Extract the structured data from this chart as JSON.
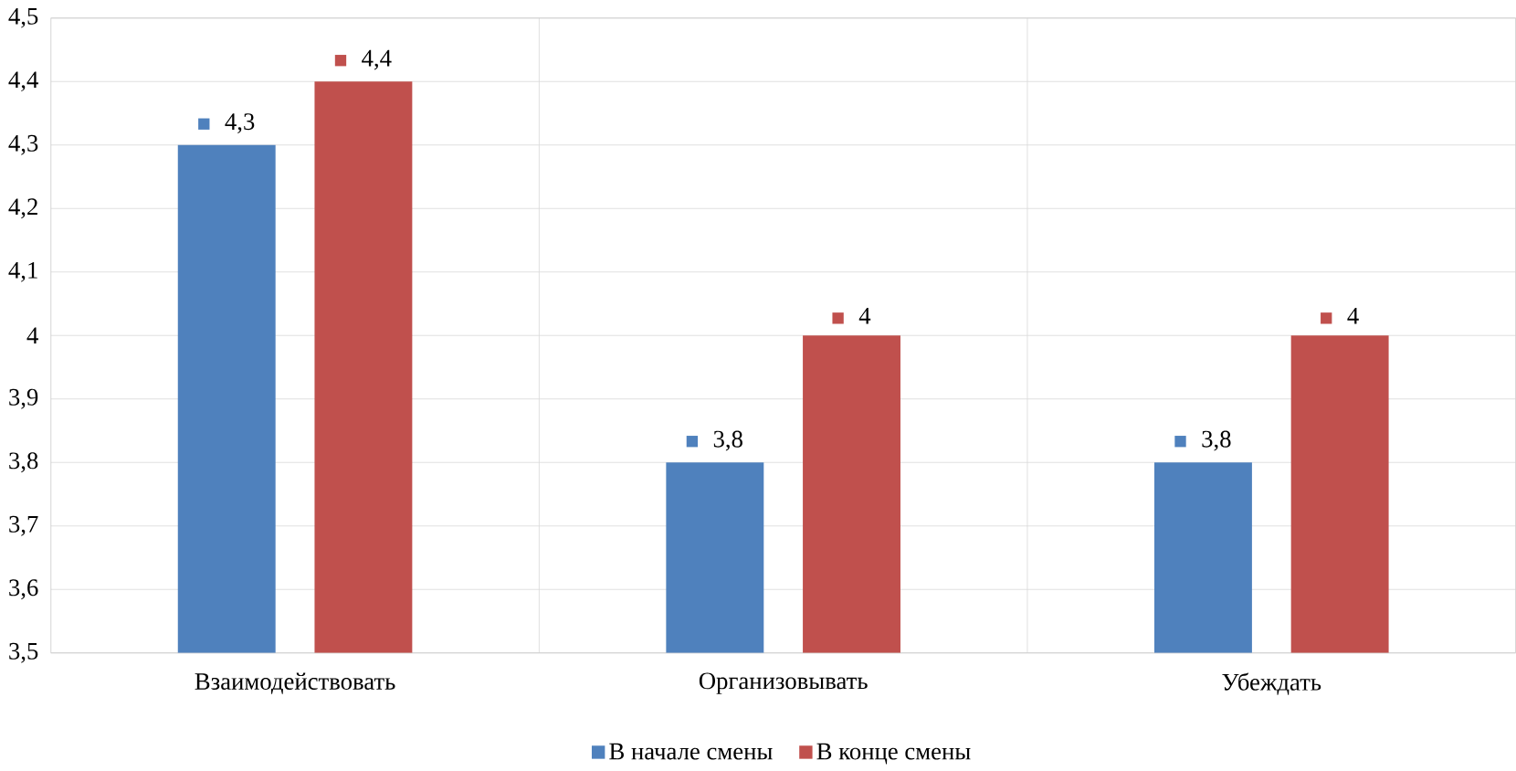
{
  "chart_data": {
    "type": "bar",
    "categories": [
      "Взаимодействовать",
      "Организовывать",
      "Убеждать"
    ],
    "series": [
      {
        "name": "В начале смены",
        "color": "#4f81bd",
        "values": [
          4.3,
          3.8,
          3.8
        ],
        "value_labels": [
          "4,3",
          "3,8",
          "3,8"
        ]
      },
      {
        "name": "В конце смены",
        "color": "#c0504d",
        "values": [
          4.4,
          4,
          4
        ],
        "value_labels": [
          "4,4",
          "4",
          "4"
        ]
      }
    ],
    "ylim": [
      3.5,
      4.5
    ],
    "yticks": [
      {
        "value": 3.5,
        "label": "3,5"
      },
      {
        "value": 3.6,
        "label": "3,6"
      },
      {
        "value": 3.7,
        "label": "3,7"
      },
      {
        "value": 3.8,
        "label": "3,8"
      },
      {
        "value": 3.9,
        "label": "3,9"
      },
      4,
      {
        "value": 4.1,
        "label": "4,1"
      },
      {
        "value": 4.2,
        "label": "4,2"
      },
      {
        "value": 4.3,
        "label": "4,3"
      },
      {
        "value": 4.4,
        "label": "4,4"
      },
      {
        "value": 4.5,
        "label": "4,5"
      }
    ],
    "grid": true,
    "legend": "bottom"
  }
}
